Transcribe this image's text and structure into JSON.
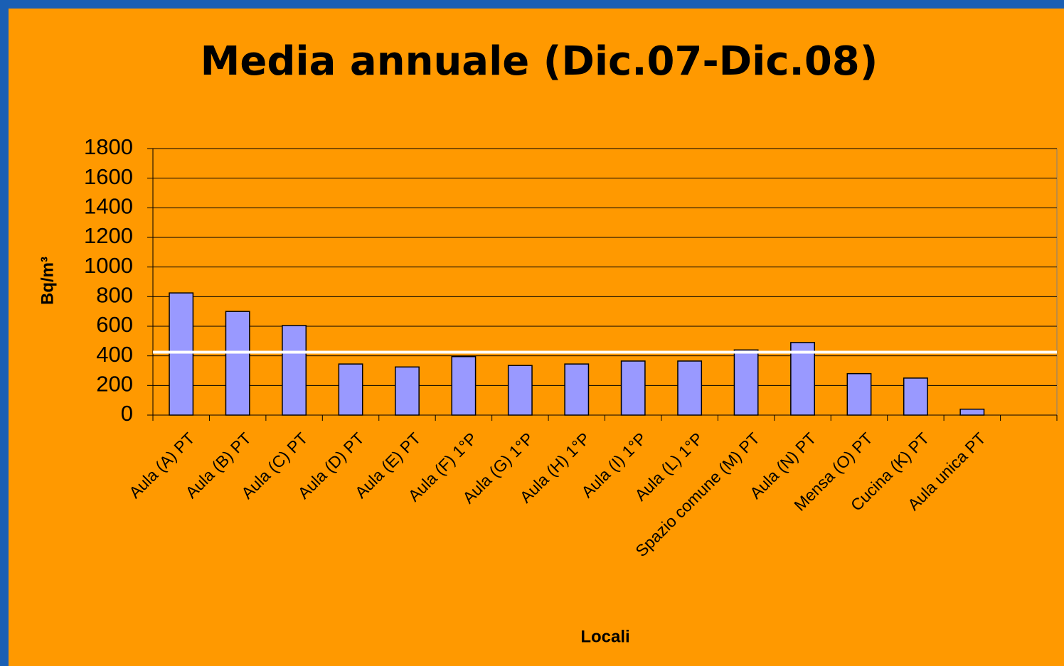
{
  "chart_data": {
    "type": "bar",
    "title": "Media annuale (Dic.07-Dic.08)",
    "x_label": "Locali",
    "y_label": "Bq/m³",
    "categories": [
      "Aula (A) PT",
      "Aula (B) PT",
      "Aula (C) PT",
      "Aula (D) PT",
      "Aula (E) PT",
      "Aula (F) 1°P",
      "Aula (G) 1°P",
      "Aula (H) 1°P",
      "Aula (I) 1°P",
      "Aula (L) 1°P",
      "Spazio comune (M) PT",
      "Aula (N) PT",
      "Mensa (O) PT",
      "Cucina (K) PT",
      "Aula unica PT",
      null
    ],
    "values": [
      825,
      700,
      605,
      345,
      325,
      395,
      335,
      345,
      365,
      365,
      440,
      490,
      280,
      250,
      40,
      null
    ],
    "color": "#9999ff",
    "reference_line": 425,
    "reference_color": "#ffffff",
    "ylim": [
      0,
      1800
    ],
    "yticks": [
      0,
      200,
      400,
      600,
      800,
      1000,
      1200,
      1400,
      1600,
      1800
    ],
    "grid": true
  }
}
